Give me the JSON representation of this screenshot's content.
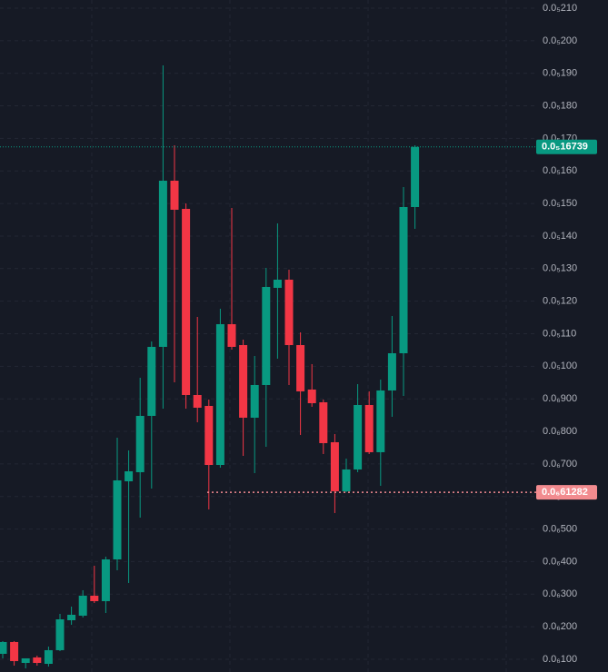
{
  "chart_data": {
    "type": "candlestick",
    "up_color": "#089981",
    "down_color": "#f23645",
    "grid": true,
    "ylim": [
      6.09e-08,
      2.1251e-06
    ],
    "yticks": [
      {
        "value": 2.1e-06,
        "label": "0.0₅210"
      },
      {
        "value": 2e-06,
        "label": "0.0₅200"
      },
      {
        "value": 1.9e-06,
        "label": "0.0₅190"
      },
      {
        "value": 1.8e-06,
        "label": "0.0₅180"
      },
      {
        "value": 1.7e-06,
        "label": "0.0₅170"
      },
      {
        "value": 1.6e-06,
        "label": "0.0₅160"
      },
      {
        "value": 1.5e-06,
        "label": "0.0₅150"
      },
      {
        "value": 1.4e-06,
        "label": "0.0₅140"
      },
      {
        "value": 1.3e-06,
        "label": "0.0₅130"
      },
      {
        "value": 1.2e-06,
        "label": "0.0₅120"
      },
      {
        "value": 1.1e-06,
        "label": "0.0₅110"
      },
      {
        "value": 1e-06,
        "label": "0.0₅100"
      },
      {
        "value": 9e-07,
        "label": "0.0₆900"
      },
      {
        "value": 8e-07,
        "label": "0.0₆800"
      },
      {
        "value": 7e-07,
        "label": "0.0₆700"
      },
      {
        "value": 6e-07,
        "label": "0.0₆600"
      },
      {
        "value": 5e-07,
        "label": "0.0₆500"
      },
      {
        "value": 4e-07,
        "label": "0.0₆400"
      },
      {
        "value": 3e-07,
        "label": "0.0₆300"
      },
      {
        "value": 2e-07,
        "label": "0.0₆200"
      },
      {
        "value": 1e-07,
        "label": "0.0₆100"
      }
    ],
    "last_price": {
      "value": 1.6739e-06,
      "label": "0.0₅16739"
    },
    "low_price": {
      "value": 6.1282e-07,
      "label": "0.0₆61282"
    },
    "open": [
      1.167e-07,
      1.53e-07,
      8.88e-08,
      1.056e-07,
      8.6e-08,
      1.279e-07,
      2.199e-07,
      2.339e-07,
      2.953e-07,
      2.785e-07,
      4.068e-07,
      6.467e-07,
      6.746e-07,
      8.476e-07,
      1.0596e-06,
      1.57e-06,
      1.4835e-06,
      9.117e-07,
      8.782e-07,
      6.969e-07,
      1.1293e-06,
      1.0651e-06,
      8.42e-07,
      9.424e-07,
      1.2409e-06,
      1.266e-06,
      1.0651e-06,
      9.285e-07,
      8.894e-07,
      7.667e-07,
      6.16e-07,
      6.83e-07,
      8.81e-07,
      7.36e-07,
      9.257e-07,
      1.04e-06,
      1.4891e-06
    ],
    "high": [
      1.558e-07,
      1.558e-07,
      1.028e-07,
      1.111e-07,
      1.39e-07,
      2.395e-07,
      2.618e-07,
      3.12e-07,
      3.873e-07,
      4.152e-07,
      7.806e-07,
      7.416e-07,
      9.647e-07,
      1.0763e-06,
      1.9243e-06,
      1.6788e-06,
      1.5003e-06,
      1.1516e-06,
      8.978e-07,
      1.1767e-06,
      1.4863e-06,
      1.0819e-06,
      1.0317e-06,
      1.3022e-06,
      1.4389e-06,
      1.2967e-06,
      1.1042e-06,
      1.0066e-06,
      8.978e-07,
      7.918e-07,
      7.165e-07,
      9.452e-07,
      9.229e-07,
      9.591e-07,
      1.1544e-06,
      1.5505e-06,
      1.6788e-06
    ],
    "low": [
      1.028e-07,
      8.04e-08,
      7.21e-08,
      8.04e-08,
      7.77e-08,
      1.251e-07,
      2.06e-07,
      2.283e-07,
      2.729e-07,
      2.422e-07,
      3.733e-07,
      3.343e-07,
      5.352e-07,
      6.244e-07,
      8.699e-07,
      9.508e-07,
      8.699e-07,
      8.28e-07,
      5.603e-07,
      6.886e-07,
      1.0512e-06,
      7.248e-07,
      6.718e-07,
      7.527e-07,
      1.0233e-06,
      9.424e-07,
      7.89e-07,
      8.755e-07,
      7.304e-07,
      5.491e-07,
      6.128e-07,
      6.746e-07,
      7.304e-07,
      6.328e-07,
      8.448e-07,
      9.089e-07,
      1.4222e-06
    ],
    "close": [
      1.53e-07,
      9.44e-08,
      1.028e-07,
      8.88e-08,
      1.279e-07,
      2.227e-07,
      2.367e-07,
      2.953e-07,
      2.785e-07,
      4.068e-07,
      6.495e-07,
      6.774e-07,
      8.476e-07,
      1.0596e-06,
      1.57e-06,
      1.4808e-06,
      9.117e-07,
      8.727e-07,
      6.969e-07,
      1.1293e-06,
      1.0596e-06,
      8.42e-07,
      9.424e-07,
      1.2437e-06,
      1.266e-06,
      1.0651e-06,
      9.229e-07,
      8.866e-07,
      7.639e-07,
      6.16e-07,
      6.83e-07,
      8.81e-07,
      7.36e-07,
      9.257e-07,
      1.04e-06,
      1.4891e-06,
      1.6739e-06
    ]
  }
}
